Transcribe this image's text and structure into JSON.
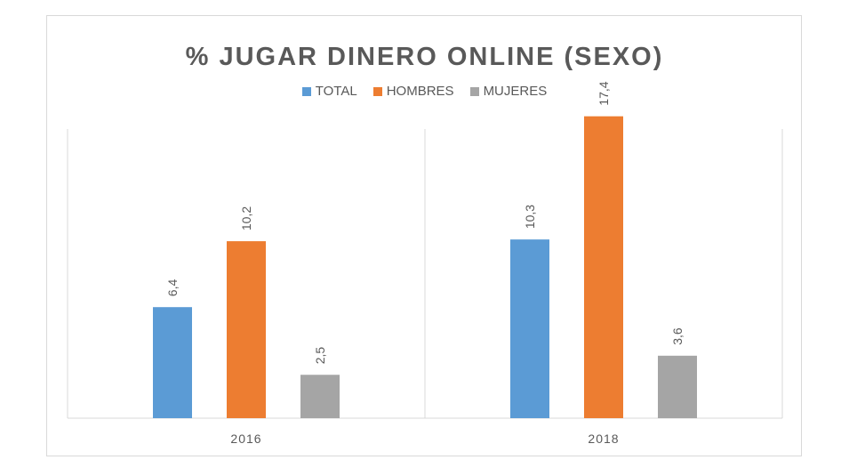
{
  "chart_data": {
    "type": "bar",
    "title": "% JUGAR DINERO ONLINE (SEXO)",
    "categories": [
      "2016",
      "2018"
    ],
    "series": [
      {
        "name": "TOTAL",
        "color": "#5b9bd5",
        "values": [
          6.4,
          10.3
        ],
        "labels": [
          "6,4",
          "10,3"
        ]
      },
      {
        "name": "HOMBRES",
        "color": "#ed7d31",
        "values": [
          10.2,
          17.4
        ],
        "labels": [
          "10,2",
          "17,4"
        ]
      },
      {
        "name": "MUJERES",
        "color": "#a5a5a5",
        "values": [
          2.5,
          3.6
        ],
        "labels": [
          "2,5",
          "3,6"
        ]
      }
    ],
    "ylim": [
      0,
      20
    ],
    "legend_position": "top",
    "grid": false
  }
}
